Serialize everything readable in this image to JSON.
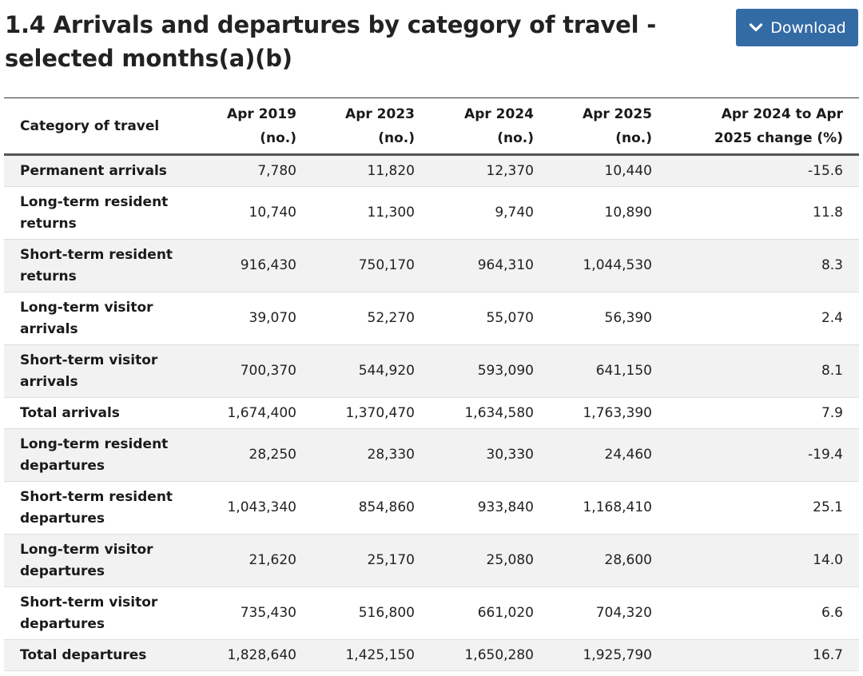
{
  "page": {
    "title": "1.4 Arrivals and departures by category of travel - selected months(a)(b)",
    "download_label": "Download",
    "download_icon": "chevron-down-icon"
  },
  "table": {
    "headers": [
      [
        "Category of travel"
      ],
      [
        "Apr 2019",
        "(no.)"
      ],
      [
        "Apr 2023",
        "(no.)"
      ],
      [
        "Apr 2024",
        "(no.)"
      ],
      [
        "Apr 2025",
        "(no.)"
      ],
      [
        "Apr 2024 to Apr",
        "2025 change (%)"
      ]
    ],
    "rows": [
      {
        "category": [
          "Permanent arrivals"
        ],
        "values": [
          "7,780",
          "11,820",
          "12,370",
          "10,440",
          "-15.6"
        ]
      },
      {
        "category": [
          "Long-term resident",
          "returns"
        ],
        "values": [
          "10,740",
          "11,300",
          "9,740",
          "10,890",
          "11.8"
        ]
      },
      {
        "category": [
          "Short-term resident",
          "returns"
        ],
        "values": [
          "916,430",
          "750,170",
          "964,310",
          "1,044,530",
          "8.3"
        ]
      },
      {
        "category": [
          "Long-term visitor",
          "arrivals"
        ],
        "values": [
          "39,070",
          "52,270",
          "55,070",
          "56,390",
          "2.4"
        ]
      },
      {
        "category": [
          "Short-term visitor",
          "arrivals"
        ],
        "values": [
          "700,370",
          "544,920",
          "593,090",
          "641,150",
          "8.1"
        ]
      },
      {
        "category": [
          "Total arrivals"
        ],
        "values": [
          "1,674,400",
          "1,370,470",
          "1,634,580",
          "1,763,390",
          "7.9"
        ]
      },
      {
        "category": [
          "Long-term resident",
          "departures"
        ],
        "values": [
          "28,250",
          "28,330",
          "30,330",
          "24,460",
          "-19.4"
        ]
      },
      {
        "category": [
          "Short-term resident",
          "departures"
        ],
        "values": [
          "1,043,340",
          "854,860",
          "933,840",
          "1,168,410",
          "25.1"
        ]
      },
      {
        "category": [
          "Long-term visitor",
          "departures"
        ],
        "values": [
          "21,620",
          "25,170",
          "25,080",
          "28,600",
          "14.0"
        ]
      },
      {
        "category": [
          "Short-term visitor",
          "departures"
        ],
        "values": [
          "735,430",
          "516,800",
          "661,020",
          "704,320",
          "6.6"
        ]
      },
      {
        "category": [
          "Total departures"
        ],
        "values": [
          "1,828,640",
          "1,425,150",
          "1,650,280",
          "1,925,790",
          "16.7"
        ]
      }
    ]
  },
  "colors": {
    "button_background": "#336ba5",
    "button_text": "#ffffff",
    "row_stripe": "#f2f2f2"
  }
}
